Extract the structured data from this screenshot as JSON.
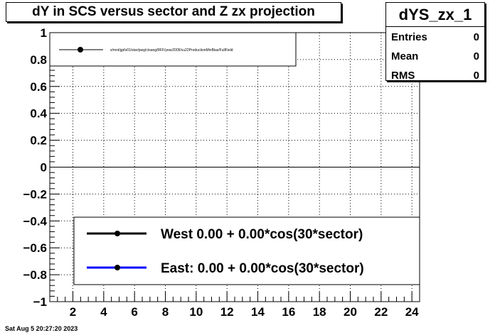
{
  "title": "dY in SCS versus sector and Z zx projection",
  "stats": {
    "name": "dYS_zx_1",
    "rows": [
      {
        "label": "Entries",
        "value": "0"
      },
      {
        "label": "Mean",
        "value": "0"
      },
      {
        "label": "RMS",
        "value": "0"
      }
    ]
  },
  "footer": "Sat Aug  5 20:27:20 2023",
  "colors": {
    "west": "#000000",
    "east": "#0000ff"
  },
  "chart_data": {
    "type": "line",
    "title": "dY in SCS versus sector and Z zx projection",
    "xlabel": "",
    "ylabel": "",
    "xlim": [
      0.5,
      24.5
    ],
    "ylim": [
      -1,
      1
    ],
    "xticks": [
      "2",
      "4",
      "6",
      "8",
      "10",
      "12",
      "14",
      "16",
      "18",
      "20",
      "22",
      "24"
    ],
    "yticks": [
      "1",
      "0.8",
      "0.6",
      "0.4",
      "0.2",
      "0",
      "−0.2",
      "−0.4",
      "−0.6",
      "−0.8",
      "−1"
    ],
    "grid": true,
    "horizontal_line": 0,
    "legend_top": {
      "placement": "top-left",
      "entries": [
        "s/mnt/gpfs01/star/pwg/ctsang/RFF/year2005/cu22ProductionMinBias/FullField"
      ]
    },
    "legend_bottom": {
      "placement": "bottom-right",
      "entries": [
        {
          "name": "West  0.00 +  0.00*cos(30*sector)",
          "color": "#000000"
        },
        {
          "name": "East:  0.00 +  0.00*cos(30*sector)",
          "color": "#0000ff"
        }
      ]
    },
    "series": []
  }
}
